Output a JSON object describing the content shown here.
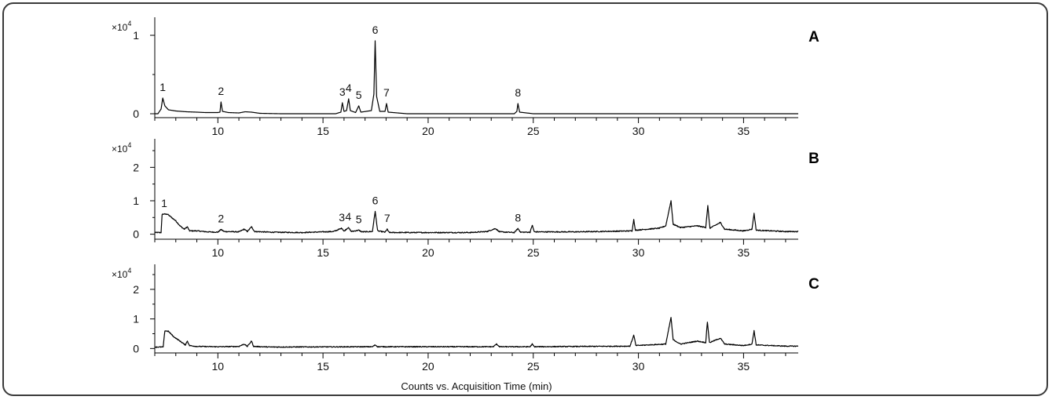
{
  "chart_data": {
    "type": "line",
    "xlabel": "Counts vs. Acquisition Time (min)",
    "x_range": [
      7.0,
      37.6
    ],
    "x_ticks": [
      10,
      15,
      20,
      25,
      30,
      35
    ],
    "x_tick_labels": [
      "10",
      "15",
      "20",
      "25",
      "30",
      "35"
    ],
    "panels": [
      {
        "panel_label": "A",
        "y_scale_label": "×10",
        "y_scale_exponent": "4",
        "ylim": [
          -0.05,
          1.25
        ],
        "y_ticks": [
          0,
          1
        ],
        "y_tick_labels": [
          "0",
          "1"
        ],
        "baseline": 0,
        "noise": 0,
        "points": [
          [
            7.0,
            0.0
          ],
          [
            7.15,
            0.0
          ],
          [
            7.3,
            0.06
          ],
          [
            7.38,
            0.2
          ],
          [
            7.48,
            0.1
          ],
          [
            7.65,
            0.05
          ],
          [
            8.0,
            0.035
          ],
          [
            8.5,
            0.025
          ],
          [
            9.0,
            0.02
          ],
          [
            9.4,
            0.015
          ],
          [
            10.0,
            0.015
          ],
          [
            10.1,
            0.02
          ],
          [
            10.15,
            0.15
          ],
          [
            10.22,
            0.03
          ],
          [
            10.5,
            0.015
          ],
          [
            11.0,
            0.01
          ],
          [
            11.3,
            0.025
          ],
          [
            11.6,
            0.02
          ],
          [
            12.0,
            0.005
          ],
          [
            13.0,
            0.0
          ],
          [
            14.0,
            0.0
          ],
          [
            15.0,
            0.0
          ],
          [
            15.6,
            0.0
          ],
          [
            15.85,
            0.02
          ],
          [
            15.92,
            0.14
          ],
          [
            16.0,
            0.03
          ],
          [
            16.12,
            0.04
          ],
          [
            16.22,
            0.19
          ],
          [
            16.3,
            0.04
          ],
          [
            16.55,
            0.015
          ],
          [
            16.7,
            0.1
          ],
          [
            16.8,
            0.02
          ],
          [
            17.3,
            0.04
          ],
          [
            17.42,
            0.25
          ],
          [
            17.48,
            0.93
          ],
          [
            17.55,
            0.22
          ],
          [
            17.7,
            0.03
          ],
          [
            17.95,
            0.03
          ],
          [
            18.02,
            0.13
          ],
          [
            18.1,
            0.02
          ],
          [
            19.0,
            0.0
          ],
          [
            22.0,
            0.0
          ],
          [
            24.1,
            0.0
          ],
          [
            24.22,
            0.03
          ],
          [
            24.27,
            0.13
          ],
          [
            24.35,
            0.02
          ],
          [
            25.0,
            0.0
          ],
          [
            30.0,
            0.0
          ],
          [
            37.6,
            0.0
          ]
        ],
        "peaks": [
          {
            "label": "1",
            "x": 7.38,
            "y": 0.2
          },
          {
            "label": "2",
            "x": 10.15,
            "y": 0.15
          },
          {
            "label": "3",
            "x": 15.92,
            "y": 0.14
          },
          {
            "label": "4",
            "x": 16.22,
            "y": 0.19
          },
          {
            "label": "5",
            "x": 16.7,
            "y": 0.1
          },
          {
            "label": "6",
            "x": 17.48,
            "y": 0.93
          },
          {
            "label": "7",
            "x": 18.02,
            "y": 0.13
          },
          {
            "label": "8",
            "x": 24.27,
            "y": 0.13
          }
        ]
      },
      {
        "panel_label": "B",
        "y_scale_label": "×10",
        "y_scale_exponent": "4",
        "ylim": [
          -0.15,
          2.9
        ],
        "y_ticks": [
          0,
          1,
          2
        ],
        "y_tick_labels": [
          "0",
          "1",
          "2"
        ],
        "baseline": 0.05,
        "noise": 0.03,
        "points": [
          [
            7.0,
            0.05
          ],
          [
            7.3,
            0.05
          ],
          [
            7.35,
            0.6
          ],
          [
            7.6,
            0.6
          ],
          [
            7.8,
            0.5
          ],
          [
            8.0,
            0.4
          ],
          [
            8.2,
            0.25
          ],
          [
            8.4,
            0.15
          ],
          [
            8.55,
            0.22
          ],
          [
            8.65,
            0.1
          ],
          [
            9.0,
            0.1
          ],
          [
            9.5,
            0.07
          ],
          [
            10.0,
            0.06
          ],
          [
            10.15,
            0.14
          ],
          [
            10.3,
            0.08
          ],
          [
            11.0,
            0.07
          ],
          [
            11.25,
            0.15
          ],
          [
            11.4,
            0.08
          ],
          [
            11.6,
            0.22
          ],
          [
            11.75,
            0.08
          ],
          [
            12.5,
            0.06
          ],
          [
            14.0,
            0.05
          ],
          [
            15.5,
            0.08
          ],
          [
            15.9,
            0.18
          ],
          [
            16.0,
            0.09
          ],
          [
            16.2,
            0.2
          ],
          [
            16.35,
            0.08
          ],
          [
            16.7,
            0.12
          ],
          [
            16.85,
            0.07
          ],
          [
            17.35,
            0.08
          ],
          [
            17.48,
            0.68
          ],
          [
            17.6,
            0.1
          ],
          [
            17.95,
            0.06
          ],
          [
            18.05,
            0.15
          ],
          [
            18.15,
            0.05
          ],
          [
            19.0,
            0.05
          ],
          [
            22.0,
            0.05
          ],
          [
            22.8,
            0.08
          ],
          [
            23.2,
            0.17
          ],
          [
            23.4,
            0.07
          ],
          [
            24.1,
            0.05
          ],
          [
            24.27,
            0.17
          ],
          [
            24.4,
            0.06
          ],
          [
            24.85,
            0.06
          ],
          [
            24.95,
            0.27
          ],
          [
            25.05,
            0.07
          ],
          [
            27.0,
            0.07
          ],
          [
            29.0,
            0.09
          ],
          [
            29.7,
            0.1
          ],
          [
            29.78,
            0.45
          ],
          [
            29.85,
            0.12
          ],
          [
            31.0,
            0.18
          ],
          [
            31.3,
            0.25
          ],
          [
            31.55,
            1.0
          ],
          [
            31.65,
            0.3
          ],
          [
            32.0,
            0.2
          ],
          [
            32.8,
            0.25
          ],
          [
            33.2,
            0.2
          ],
          [
            33.3,
            0.85
          ],
          [
            33.4,
            0.18
          ],
          [
            33.9,
            0.35
          ],
          [
            34.1,
            0.15
          ],
          [
            35.0,
            0.1
          ],
          [
            35.4,
            0.15
          ],
          [
            35.5,
            0.62
          ],
          [
            35.6,
            0.12
          ],
          [
            37.0,
            0.08
          ],
          [
            37.6,
            0.08
          ]
        ],
        "peaks": [
          {
            "label": "1",
            "x": 7.45,
            "y": 0.6
          },
          {
            "label": "2",
            "x": 10.15,
            "y": 0.14
          },
          {
            "label": "3",
            "x": 15.9,
            "y": 0.18
          },
          {
            "label": "4",
            "x": 16.2,
            "y": 0.2
          },
          {
            "label": "5",
            "x": 16.7,
            "y": 0.12
          },
          {
            "label": "6",
            "x": 17.48,
            "y": 0.68
          },
          {
            "label": "7",
            "x": 18.05,
            "y": 0.15
          },
          {
            "label": "8",
            "x": 24.27,
            "y": 0.17
          }
        ]
      },
      {
        "panel_label": "C",
        "y_scale_label": "×10",
        "y_scale_exponent": "4",
        "ylim": [
          -0.15,
          2.9
        ],
        "y_ticks": [
          0,
          1,
          2
        ],
        "y_tick_labels": [
          "0",
          "1",
          "2"
        ],
        "baseline": 0.05,
        "noise": 0.03,
        "points": [
          [
            7.0,
            0.05
          ],
          [
            7.4,
            0.05
          ],
          [
            7.48,
            0.6
          ],
          [
            7.65,
            0.58
          ],
          [
            7.9,
            0.4
          ],
          [
            8.1,
            0.3
          ],
          [
            8.3,
            0.2
          ],
          [
            8.45,
            0.12
          ],
          [
            8.55,
            0.25
          ],
          [
            8.65,
            0.1
          ],
          [
            9.0,
            0.07
          ],
          [
            10.0,
            0.06
          ],
          [
            11.0,
            0.07
          ],
          [
            11.25,
            0.15
          ],
          [
            11.4,
            0.07
          ],
          [
            11.6,
            0.25
          ],
          [
            11.7,
            0.07
          ],
          [
            12.5,
            0.05
          ],
          [
            17.35,
            0.06
          ],
          [
            17.48,
            0.12
          ],
          [
            17.6,
            0.06
          ],
          [
            23.1,
            0.06
          ],
          [
            23.25,
            0.15
          ],
          [
            23.4,
            0.06
          ],
          [
            24.85,
            0.06
          ],
          [
            24.95,
            0.15
          ],
          [
            25.05,
            0.06
          ],
          [
            29.6,
            0.08
          ],
          [
            29.78,
            0.45
          ],
          [
            29.88,
            0.1
          ],
          [
            31.3,
            0.15
          ],
          [
            31.55,
            1.05
          ],
          [
            31.65,
            0.3
          ],
          [
            32.0,
            0.15
          ],
          [
            32.8,
            0.25
          ],
          [
            33.2,
            0.2
          ],
          [
            33.28,
            0.9
          ],
          [
            33.38,
            0.2
          ],
          [
            33.9,
            0.35
          ],
          [
            34.1,
            0.15
          ],
          [
            35.0,
            0.1
          ],
          [
            35.4,
            0.15
          ],
          [
            35.5,
            0.6
          ],
          [
            35.6,
            0.12
          ],
          [
            37.0,
            0.08
          ],
          [
            37.6,
            0.08
          ]
        ],
        "peaks": []
      }
    ]
  }
}
